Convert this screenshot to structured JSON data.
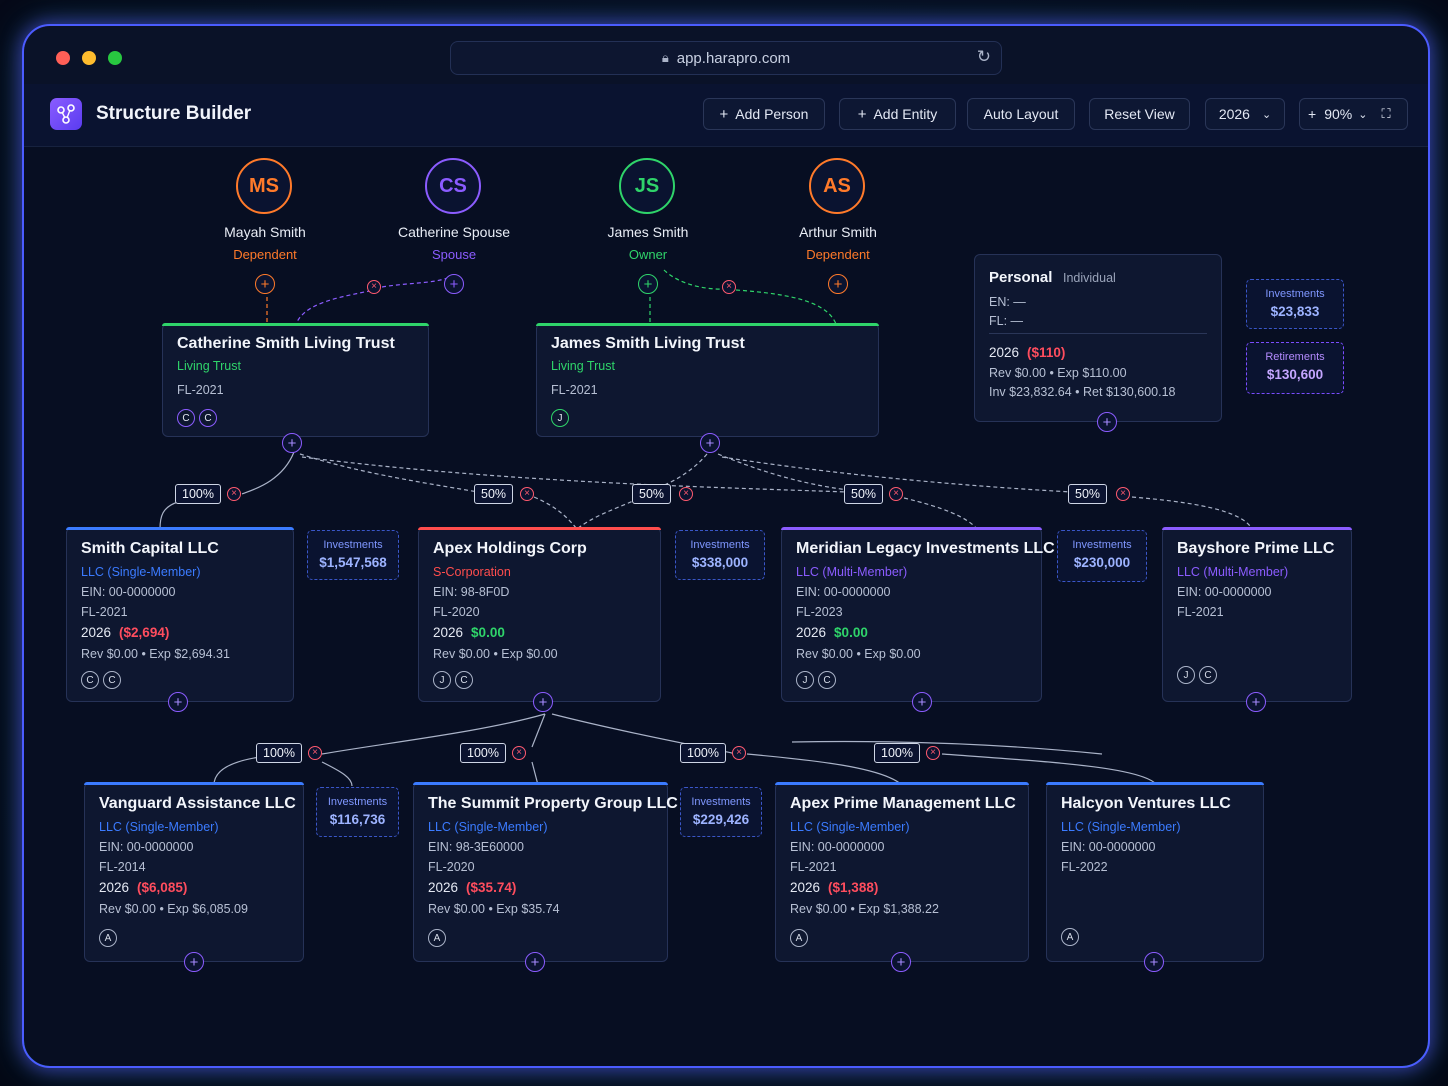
{
  "browser": {
    "url": "app.harapro.com"
  },
  "app": {
    "title": "Structure Builder"
  },
  "toolbar": {
    "add_person": "Add Person",
    "add_entity": "Add Entity",
    "auto_layout": "Auto Layout",
    "reset_view": "Reset View",
    "year": "2026",
    "zoom": "90%"
  },
  "people": [
    {
      "initials": "MS",
      "name": "Mayah Smith",
      "role": "Dependent",
      "color": "#ff7a2a"
    },
    {
      "initials": "CS",
      "name": "Catherine Spouse",
      "role": "Spouse",
      "color": "#8b5cff"
    },
    {
      "initials": "JS",
      "name": "James Smith",
      "role": "Owner",
      "color": "#2fd46a"
    },
    {
      "initials": "AS",
      "name": "Arthur Smith",
      "role": "Dependent",
      "color": "#ff7a2a"
    }
  ],
  "trusts": [
    {
      "title": "Catherine Smith Living Trust",
      "type": "Living Trust",
      "fl": "FL-2021",
      "chips": [
        "C",
        "C"
      ]
    },
    {
      "title": "James Smith Living Trust",
      "type": "Living Trust",
      "fl": "FL-2021",
      "chips": [
        "J"
      ]
    }
  ],
  "personal": {
    "title": "Personal",
    "subtitle": "Individual",
    "en": "EN: —",
    "fl": "FL: —",
    "year": "2026",
    "amount": "($110)",
    "rev_exp": "Rev $0.00 • Exp $110.00",
    "inv_ret": "Inv $23,832.64 • Ret $130,600.18",
    "investments": {
      "label": "Investments",
      "value": "$23,833"
    },
    "retirements": {
      "label": "Retirements",
      "value": "$130,600"
    }
  },
  "entities_row1": [
    {
      "title": "Smith Capital LLC",
      "type": "LLC (Single-Member)",
      "ein": "EIN: 00-0000000",
      "fl": "FL-2021",
      "year": "2026",
      "amount": "($2,694)",
      "rev_exp": "Rev $0.00 • Exp $2,694.31",
      "chips": [
        "C",
        "C"
      ],
      "bar": "#3b7bff",
      "type_color": "#3b7bff",
      "amount_class": "neg"
    },
    {
      "title": "Apex Holdings Corp",
      "type": "S-Corporation",
      "ein": "EIN: 98-8F0D",
      "fl": "FL-2020",
      "year": "2026",
      "amount": "$0.00",
      "rev_exp": "Rev $0.00 • Exp $0.00",
      "chips": [
        "J",
        "C"
      ],
      "bar": "#ff4d4d",
      "type_color": "#ff4d4d",
      "amount_class": "pos"
    },
    {
      "title": "Meridian Legacy Investments LLC",
      "type": "LLC (Multi-Member)",
      "ein": "EIN: 00-0000000",
      "fl": "FL-2023",
      "year": "2026",
      "amount": "$0.00",
      "rev_exp": "Rev $0.00 • Exp $0.00",
      "chips": [
        "J",
        "C"
      ],
      "bar": "#8b5cff",
      "type_color": "#8b5cff",
      "amount_class": "pos"
    },
    {
      "title": "Bayshore Prime LLC",
      "type": "LLC (Multi-Member)",
      "ein": "EIN: 00-0000000",
      "fl": "FL-2021",
      "chips": [
        "J",
        "C"
      ],
      "bar": "#8b5cff",
      "type_color": "#8b5cff"
    }
  ],
  "investments_row1": [
    {
      "label": "Investments",
      "value": "$1,547,568"
    },
    {
      "label": "Investments",
      "value": "$338,000"
    },
    {
      "label": "Investments",
      "value": "$230,000"
    }
  ],
  "pct_row1": [
    "100%",
    "50%",
    "50%",
    "50%",
    "50%"
  ],
  "entities_row2": [
    {
      "title": "Vanguard Assistance LLC",
      "type": "LLC (Single-Member)",
      "ein": "EIN: 00-0000000",
      "fl": "FL-2014",
      "year": "2026",
      "amount": "($6,085)",
      "rev_exp": "Rev $0.00 • Exp $6,085.09",
      "chips": [
        "A"
      ]
    },
    {
      "title": "The Summit Property Group LLC",
      "type": "LLC (Single-Member)",
      "ein": "EIN: 98-3E60000",
      "fl": "FL-2020",
      "year": "2026",
      "amount": "($35.74)",
      "rev_exp": "Rev $0.00 • Exp $35.74",
      "chips": [
        "A"
      ]
    },
    {
      "title": "Apex Prime Management LLC",
      "type": "LLC (Single-Member)",
      "ein": "EIN: 00-0000000",
      "fl": "FL-2021",
      "year": "2026",
      "amount": "($1,388)",
      "rev_exp": "Rev $0.00 • Exp $1,388.22",
      "chips": [
        "A"
      ]
    },
    {
      "title": "Halcyon Ventures LLC",
      "type": "LLC (Single-Member)",
      "ein": "EIN: 00-0000000",
      "fl": "FL-2022",
      "chips": [
        "A"
      ]
    }
  ],
  "investments_row2": [
    {
      "label": "Investments",
      "value": "$116,736"
    },
    {
      "label": "Investments",
      "value": "$229,426"
    }
  ],
  "pct_row2": [
    "100%",
    "100%",
    "100%",
    "100%"
  ]
}
